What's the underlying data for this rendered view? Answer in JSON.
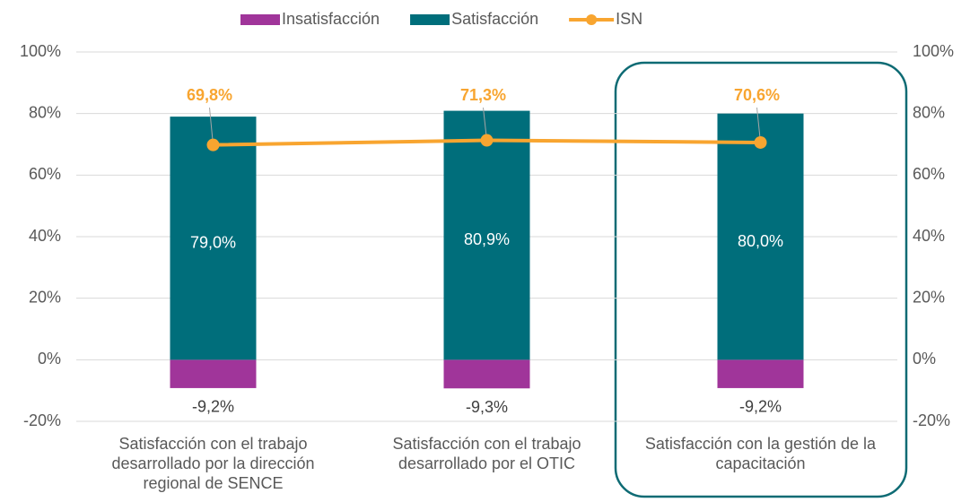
{
  "chart_data": {
    "type": "bar",
    "categories": [
      "Satisfacción con el trabajo desarrollado por la dirección regional de SENCE",
      "Satisfacción con el trabajo desarrollado por el OTIC",
      "Satisfacción con la gestión de la capacitación"
    ],
    "series": [
      {
        "name": "Insatisfacción",
        "color": "#a0359a",
        "values": [
          -9.2,
          -9.3,
          -9.2
        ],
        "value_labels": [
          "-9,2%",
          "-9,3%",
          "-9,2%"
        ]
      },
      {
        "name": "Satisfacción",
        "color": "#006e7b",
        "values": [
          79.0,
          80.9,
          80.0
        ],
        "value_labels": [
          "79,0%",
          "80,9%",
          "80,0%"
        ]
      },
      {
        "name": "ISN",
        "type": "line",
        "color": "#f8a530",
        "values": [
          69.8,
          71.3,
          70.6
        ],
        "value_labels": [
          "69,8%",
          "71,3%",
          "70,6%"
        ]
      }
    ],
    "ylim": [
      -20,
      100
    ],
    "yticks": [
      {
        "value": -20,
        "label": "-20%"
      },
      {
        "value": 0,
        "label": "0%"
      },
      {
        "value": 20,
        "label": "20%"
      },
      {
        "value": 40,
        "label": "40%"
      },
      {
        "value": 60,
        "label": "60%"
      },
      {
        "value": 80,
        "label": "80%"
      },
      {
        "value": 100,
        "label": "100%"
      }
    ],
    "y2lim": [
      -20,
      100
    ],
    "y2ticks": [
      {
        "value": -20,
        "label": "-20%"
      },
      {
        "value": 0,
        "label": "0%"
      },
      {
        "value": 20,
        "label": "20%"
      },
      {
        "value": 40,
        "label": "40%"
      },
      {
        "value": 60,
        "label": "60%"
      },
      {
        "value": 80,
        "label": "80%"
      },
      {
        "value": 100,
        "label": "100%"
      }
    ],
    "grid": true,
    "legend": "top"
  }
}
